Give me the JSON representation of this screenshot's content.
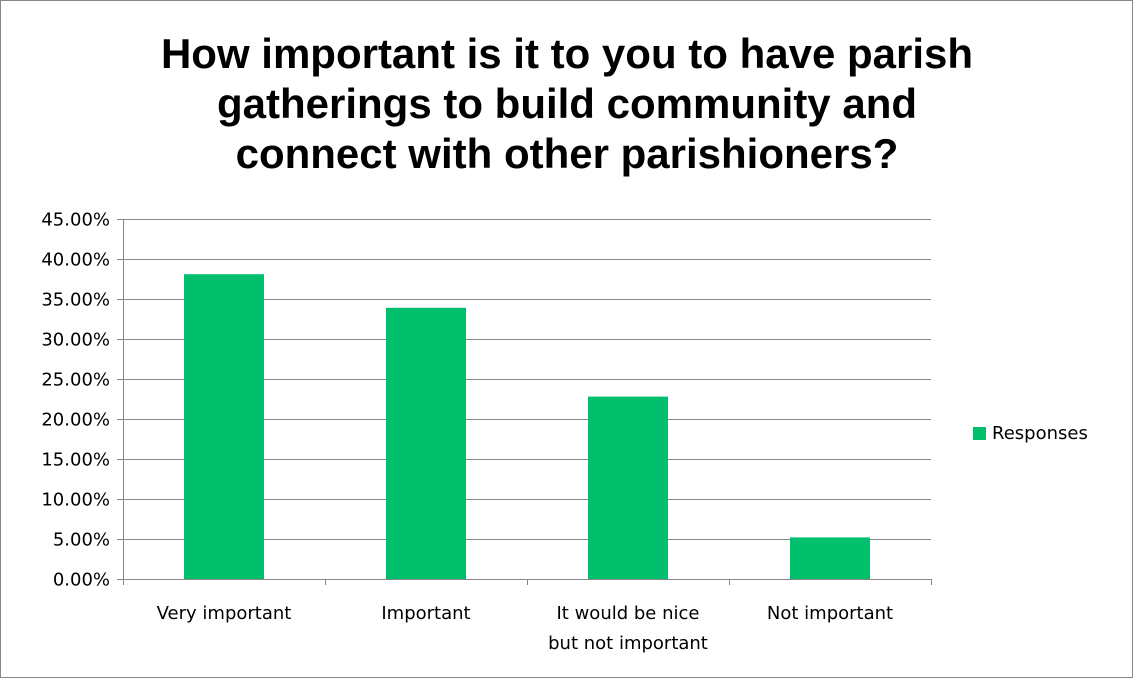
{
  "chart_data": {
    "type": "bar",
    "title": "How important is it to you to have parish\ngatherings to build community and\nconnect with other parishioners?",
    "categories": [
      "Very important",
      "Important",
      "It would be nice\nbut not important",
      "Not important"
    ],
    "series": [
      {
        "name": "Responses",
        "values": [
          38.1,
          33.9,
          22.8,
          5.2
        ],
        "color": "#00C06E"
      }
    ],
    "ylim": [
      0,
      45
    ],
    "yticks": [
      0,
      5,
      10,
      15,
      20,
      25,
      30,
      35,
      40,
      45
    ],
    "ytick_labels": [
      "0.00%",
      "5.00%",
      "10.00%",
      "15.00%",
      "20.00%",
      "25.00%",
      "30.00%",
      "35.00%",
      "40.00%",
      "45.00%"
    ],
    "grid": true,
    "legend_position": "right",
    "xlabel": "",
    "ylabel": ""
  },
  "colors": {
    "grid": "#868686",
    "axis": "#868686",
    "border": "#868686",
    "bar": "#00C06E"
  }
}
